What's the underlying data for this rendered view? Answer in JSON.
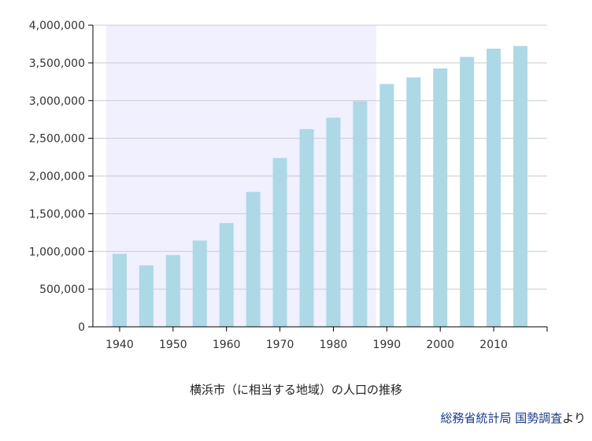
{
  "chart_data": {
    "type": "bar",
    "title": "横浜市（に相当する地域）の人口の推移",
    "xlabel": "",
    "ylabel": "",
    "categories": [
      "1940",
      "1945",
      "1950",
      "1955",
      "1960",
      "1965",
      "1970",
      "1975",
      "1980",
      "1985",
      "1990",
      "1995",
      "2000",
      "2005",
      "2010",
      "2015"
    ],
    "values": [
      968091,
      814379,
      951189,
      1143687,
      1375710,
      1788915,
      2238264,
      2621771,
      2773674,
      2992926,
      3220331,
      3307136,
      3426651,
      3579628,
      3688773,
      3724844
    ],
    "x_tick_labels": [
      "1940",
      "1950",
      "1960",
      "1970",
      "1980",
      "1990",
      "2000",
      "2010"
    ],
    "y_tick_labels": [
      "0",
      "500,000",
      "1,000,000",
      "1,500,000",
      "2,000,000",
      "2,500,000",
      "3,000,000",
      "3,500,000",
      "4,000,000"
    ],
    "ylim": [
      0,
      4000000
    ],
    "y_tick_step": 500000,
    "x_range": [
      1935,
      2020
    ],
    "shaded_region": {
      "x_start": 1937.5,
      "x_end": 1988
    },
    "grid": true,
    "colors": {
      "bar": "#add8e6",
      "shade": "#f0f0ff",
      "grid": "#cccccc",
      "axis": "#000000"
    }
  },
  "footer": {
    "source_links": [
      "総務省統計局",
      "国勢調査"
    ],
    "source_suffix": "より"
  }
}
